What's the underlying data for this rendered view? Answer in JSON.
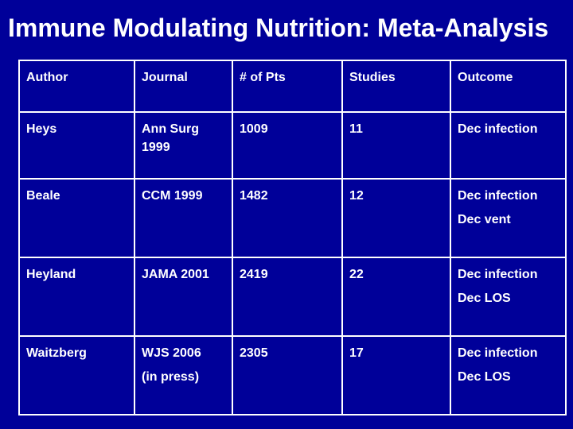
{
  "title": "Immune Modulating Nutrition: Meta-Analysis",
  "table": {
    "headers": [
      "Author",
      "Journal",
      "# of Pts",
      "Studies",
      "Outcome"
    ],
    "rows": [
      {
        "author": "Heys",
        "journal": [
          "Ann Surg 1999"
        ],
        "pts": "1009",
        "studies": "11",
        "outcome": [
          "Dec infection"
        ]
      },
      {
        "author": "Beale",
        "journal": [
          "CCM 1999"
        ],
        "pts": "1482",
        "studies": "12",
        "outcome": [
          "Dec infection",
          "Dec vent"
        ]
      },
      {
        "author": "Heyland",
        "journal": [
          "JAMA 2001"
        ],
        "pts": "2419",
        "studies": "22",
        "outcome": [
          "Dec infection",
          "Dec LOS"
        ]
      },
      {
        "author": "Waitzberg",
        "journal": [
          "WJS 2006",
          "(in press)"
        ],
        "pts": "2305",
        "studies": "17",
        "outcome": [
          "Dec infection",
          "Dec LOS"
        ]
      }
    ]
  },
  "colors": {
    "background": "#000099",
    "text": "#ffffff",
    "border": "#ffffff"
  }
}
